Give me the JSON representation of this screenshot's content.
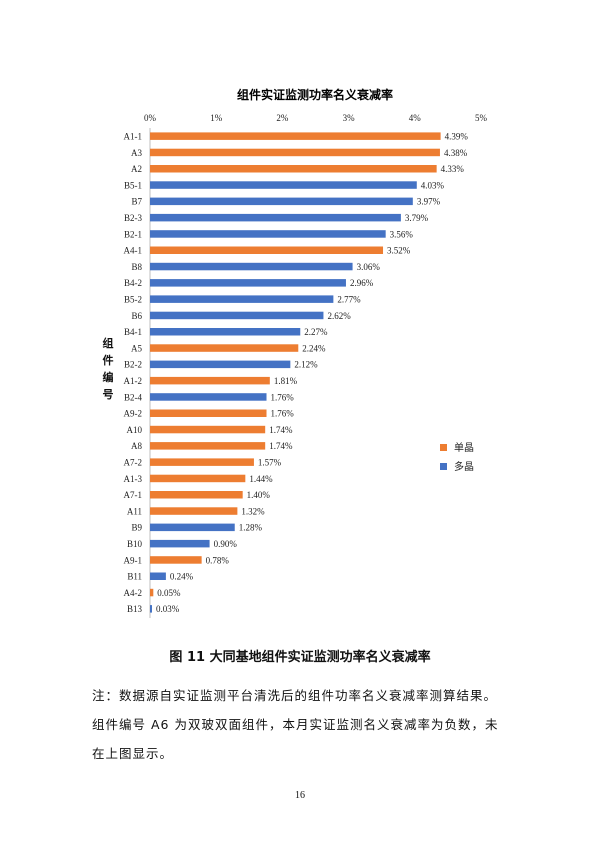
{
  "chart_data": {
    "type": "bar",
    "orientation": "horizontal",
    "title": "组件实证监测功率名义衰减率",
    "ylabel": "组件编号",
    "xlabel": "",
    "x_ticks": [
      "0%",
      "1%",
      "2%",
      "3%",
      "4%",
      "5%"
    ],
    "xlim": [
      0,
      5
    ],
    "x_axis_position": "top",
    "grid": false,
    "legend_position": "right",
    "series": [
      {
        "name": "单晶",
        "color": "#ED7D31"
      },
      {
        "name": "多晶",
        "color": "#4472C4"
      }
    ],
    "bars": [
      {
        "label": "A1-1",
        "value": 4.39,
        "text": "4.39%",
        "series": "单晶"
      },
      {
        "label": "A3",
        "value": 4.38,
        "text": "4.38%",
        "series": "单晶"
      },
      {
        "label": "A2",
        "value": 4.33,
        "text": "4.33%",
        "series": "单晶"
      },
      {
        "label": "B5-1",
        "value": 4.03,
        "text": "4.03%",
        "series": "多晶"
      },
      {
        "label": "B7",
        "value": 3.97,
        "text": "3.97%",
        "series": "多晶"
      },
      {
        "label": "B2-3",
        "value": 3.79,
        "text": "3.79%",
        "series": "多晶"
      },
      {
        "label": "B2-1",
        "value": 3.56,
        "text": "3.56%",
        "series": "多晶"
      },
      {
        "label": "A4-1",
        "value": 3.52,
        "text": "3.52%",
        "series": "单晶"
      },
      {
        "label": "B8",
        "value": 3.06,
        "text": "3.06%",
        "series": "多晶"
      },
      {
        "label": "B4-2",
        "value": 2.96,
        "text": "2.96%",
        "series": "多晶"
      },
      {
        "label": "B5-2",
        "value": 2.77,
        "text": "2.77%",
        "series": "多晶"
      },
      {
        "label": "B6",
        "value": 2.62,
        "text": "2.62%",
        "series": "多晶"
      },
      {
        "label": "B4-1",
        "value": 2.27,
        "text": "2.27%",
        "series": "多晶"
      },
      {
        "label": "A5",
        "value": 2.24,
        "text": "2.24%",
        "series": "单晶"
      },
      {
        "label": "B2-2",
        "value": 2.12,
        "text": "2.12%",
        "series": "多晶"
      },
      {
        "label": "A1-2",
        "value": 1.81,
        "text": "1.81%",
        "series": "单晶"
      },
      {
        "label": "B2-4",
        "value": 1.76,
        "text": "1.76%",
        "series": "多晶"
      },
      {
        "label": "A9-2",
        "value": 1.76,
        "text": "1.76%",
        "series": "单晶"
      },
      {
        "label": "A10",
        "value": 1.74,
        "text": "1.74%",
        "series": "单晶"
      },
      {
        "label": "A8",
        "value": 1.74,
        "text": "1.74%",
        "series": "单晶"
      },
      {
        "label": "A7-2",
        "value": 1.57,
        "text": "1.57%",
        "series": "单晶"
      },
      {
        "label": "A1-3",
        "value": 1.44,
        "text": "1.44%",
        "series": "单晶"
      },
      {
        "label": "A7-1",
        "value": 1.4,
        "text": "1.40%",
        "series": "单晶"
      },
      {
        "label": "A11",
        "value": 1.32,
        "text": "1.32%",
        "series": "单晶"
      },
      {
        "label": "B9",
        "value": 1.28,
        "text": "1.28%",
        "series": "多晶"
      },
      {
        "label": "B10",
        "value": 0.9,
        "text": "0.90%",
        "series": "多晶"
      },
      {
        "label": "A9-1",
        "value": 0.78,
        "text": "0.78%",
        "series": "单晶"
      },
      {
        "label": "B11",
        "value": 0.24,
        "text": "0.24%",
        "series": "多晶"
      },
      {
        "label": "A4-2",
        "value": 0.05,
        "text": "0.05%",
        "series": "单晶"
      },
      {
        "label": "B13",
        "value": 0.03,
        "text": "0.03%",
        "series": "多晶"
      }
    ]
  },
  "caption": "图 11  大同基地组件实证监测功率名义衰减率",
  "note_lines": [
    "注：数据源自实证监测平台清洗后的组件功率名义衰减率测算结果。",
    "组件编号 A6 为双玻双面组件，本月实证监测名义衰减率为负数，未",
    "在上图显示。"
  ],
  "page_number": "16"
}
